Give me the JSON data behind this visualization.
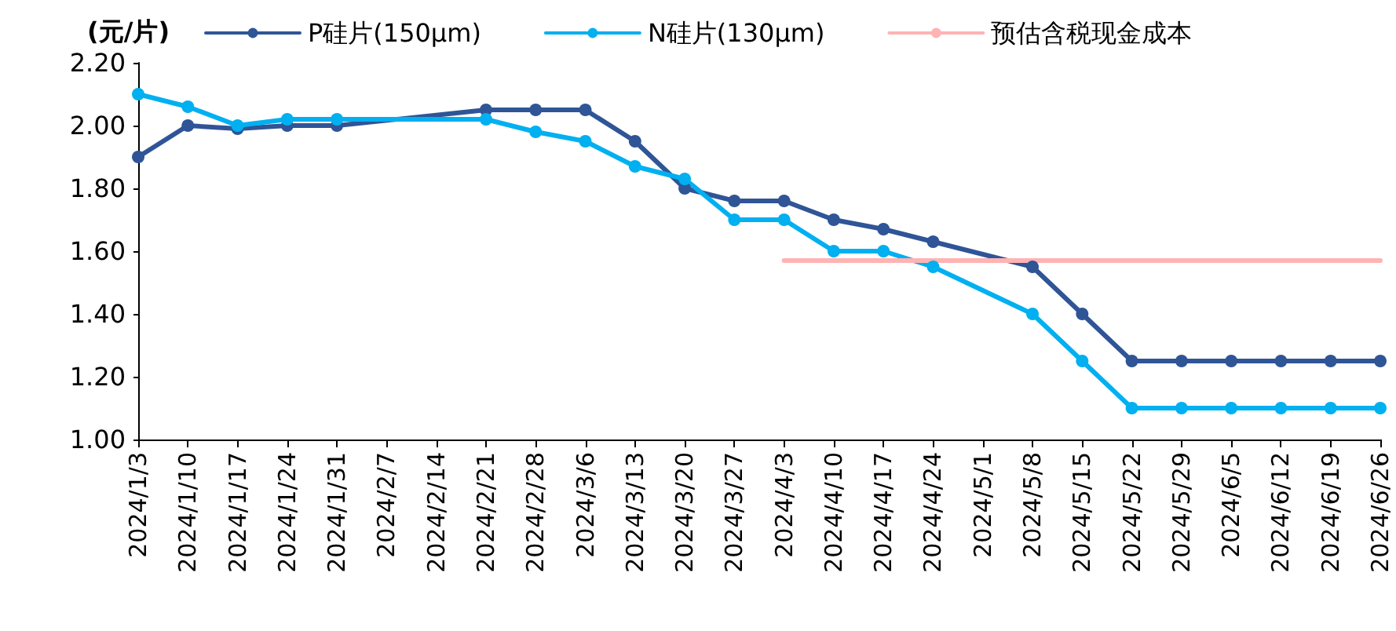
{
  "chart_data": {
    "type": "line",
    "ylabel": "(元/片)",
    "categories": [
      "2024/1/3",
      "2024/1/10",
      "2024/1/17",
      "2024/1/24",
      "2024/1/31",
      "2024/2/7",
      "2024/2/14",
      "2024/2/21",
      "2024/2/28",
      "2024/3/6",
      "2024/3/13",
      "2024/3/20",
      "2024/3/27",
      "2024/4/3",
      "2024/4/10",
      "2024/4/17",
      "2024/4/24",
      "2024/5/1",
      "2024/5/8",
      "2024/5/15",
      "2024/5/22",
      "2024/5/29",
      "2024/6/5",
      "2024/6/12",
      "2024/6/19",
      "2024/6/26"
    ],
    "series": [
      {
        "name": "P硅片(150μm)",
        "color": "#2f5597",
        "values": [
          1.9,
          2.0,
          1.99,
          2.0,
          2.0,
          null,
          null,
          2.05,
          2.05,
          2.05,
          1.95,
          1.8,
          1.76,
          1.76,
          1.7,
          1.67,
          1.63,
          null,
          1.55,
          1.4,
          1.25,
          1.25,
          1.25,
          1.25,
          1.25,
          1.25
        ]
      },
      {
        "name": "N硅片(130μm)",
        "color": "#00b0f0",
        "values": [
          2.1,
          2.06,
          2.0,
          2.02,
          2.02,
          null,
          null,
          2.02,
          1.98,
          1.95,
          1.87,
          1.83,
          1.7,
          1.7,
          1.6,
          1.6,
          1.55,
          null,
          1.4,
          1.25,
          1.1,
          1.1,
          1.1,
          1.1,
          1.1,
          1.1
        ]
      },
      {
        "name": "预估含税现金成本",
        "color": "#ffb3b3",
        "marker": "none",
        "values": [
          null,
          null,
          null,
          null,
          null,
          null,
          null,
          null,
          null,
          null,
          null,
          null,
          null,
          1.57,
          1.57,
          1.57,
          1.57,
          1.57,
          1.57,
          1.57,
          1.57,
          1.57,
          1.57,
          1.57,
          1.57,
          1.57
        ]
      }
    ],
    "ylim": [
      1.0,
      2.2
    ],
    "yticks": [
      {
        "value": 1.0,
        "label": "1.00"
      },
      {
        "value": 1.2,
        "label": "1.20"
      },
      {
        "value": 1.4,
        "label": "1.40"
      },
      {
        "value": 1.6,
        "label": "1.60"
      },
      {
        "value": 1.8,
        "label": "1.80"
      },
      {
        "value": 2.0,
        "label": "2.00"
      },
      {
        "value": 2.2,
        "label": "2.20"
      }
    ],
    "grid": false,
    "legend": "top",
    "marker": "circle",
    "line_style": "solid"
  }
}
